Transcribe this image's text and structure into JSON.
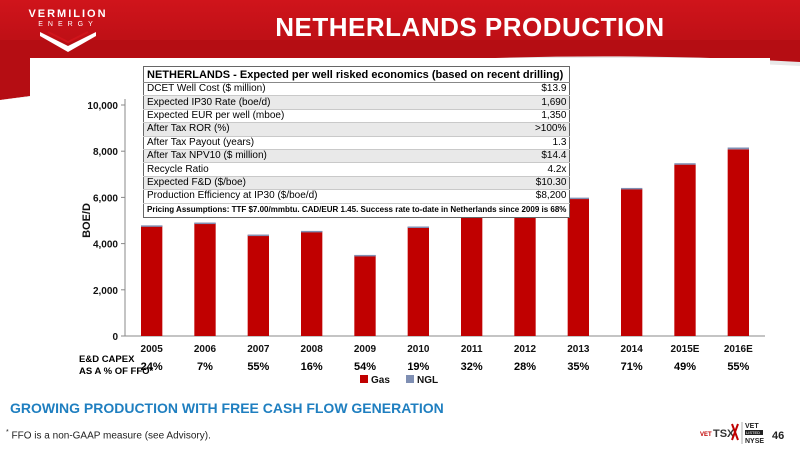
{
  "header": {
    "logo_word1": "VERMILION",
    "logo_word2": "ENERGY",
    "title": "NETHERLANDS PRODUCTION"
  },
  "econ_table": {
    "title": "NETHERLANDS - Expected per well risked economics (based on recent drilling)",
    "rows": [
      {
        "label": "DCET Well Cost ($ million)",
        "value": "$13.9"
      },
      {
        "label": "Expected IP30 Rate (boe/d)",
        "value": "1,690"
      },
      {
        "label": "Expected EUR per well (mboe)",
        "value": "1,350"
      },
      {
        "label": "After Tax ROR (%)",
        "value": ">100%"
      },
      {
        "label": "After Tax Payout (years)",
        "value": "1.3"
      },
      {
        "label": "After Tax NPV10 ($ million)",
        "value": "$14.4"
      },
      {
        "label": "Recycle Ratio",
        "value": "4.2x"
      },
      {
        "label": "Expected F&D ($/boe)",
        "value": "$10.30"
      },
      {
        "label": "Production Efficiency at IP30 ($/boe/d)",
        "value": "$8,200"
      }
    ],
    "assumptions": "Pricing Assumptions:  TTF $7.00/mmbtu.  CAD/EUR 1.45. Success rate to-date in Netherlands since 2009 is 68%"
  },
  "capex": {
    "label_line1": "E&D CAPEX",
    "label_line2": "AS A % OF FFO*",
    "values": [
      "24%",
      "7%",
      "55%",
      "16%",
      "54%",
      "19%",
      "32%",
      "28%",
      "35%",
      "71%",
      "49%",
      "55%"
    ]
  },
  "chart_data": {
    "type": "bar",
    "stacked": true,
    "categories": [
      "2005",
      "2006",
      "2007",
      "2008",
      "2009",
      "2010",
      "2011",
      "2012",
      "2013",
      "2014",
      "2015E",
      "2016E"
    ],
    "series": [
      {
        "name": "Gas",
        "color": "#c00000",
        "values": [
          4780,
          4900,
          4380,
          4540,
          3500,
          4730,
          5480,
          5700,
          5960,
          6370,
          7420,
          8080
        ]
      },
      {
        "name": "NGL",
        "color": "#7f8fb3",
        "values": [
          10,
          10,
          10,
          10,
          10,
          10,
          20,
          30,
          30,
          40,
          60,
          80
        ]
      }
    ],
    "ylabel": "BOE/D",
    "ylim": [
      0,
      10000
    ],
    "yticks": [
      "0",
      "2,000",
      "4,000",
      "6,000",
      "8,000",
      "10,000"
    ],
    "grid": false,
    "legend": "bottom"
  },
  "footer": {
    "heading": "GROWING PRODUCTION WITH FREE CASH FLOW GENERATION",
    "footnote_mark": "*",
    "footnote": "FFO is a non-GAAP measure (see Advisory).",
    "exchange_tsx": "TSX",
    "exchange_vet_prefix": "VET",
    "exchange_vet": "VET",
    "exchange_listed": "LISTED",
    "exchange_nyse": "NYSE",
    "page_number": "46"
  }
}
